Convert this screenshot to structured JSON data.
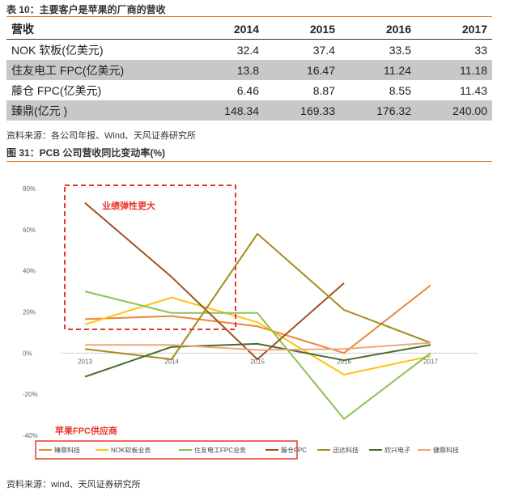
{
  "table": {
    "caption": "表 10：主要客户是苹果的厂商的营收",
    "header": [
      "营收",
      "2014",
      "2015",
      "2016",
      "2017"
    ],
    "rows": [
      {
        "label": "NOK 软板(亿美元)",
        "values": [
          "32.4",
          "37.4",
          "33.5",
          "33"
        ]
      },
      {
        "label": "住友电工 FPC(亿美元)",
        "values": [
          "13.8",
          "16.47",
          "11.24",
          "11.18"
        ]
      },
      {
        "label": "藤仓 FPC(亿美元)",
        "values": [
          "6.46",
          "8.87",
          "8.55",
          "11.43"
        ]
      },
      {
        "label": "臻鼎(亿元 )",
        "values": [
          "148.34",
          "169.33",
          "176.32",
          "240.00"
        ]
      }
    ],
    "source": "资料来源：各公司年报、Wind、天风证券研究所"
  },
  "chart_caption": "图 31：PCB 公司营收同比变动率(%)",
  "chart_data": {
    "type": "line",
    "categories": [
      "2013",
      "2014",
      "2015",
      "2016",
      "2017"
    ],
    "ylim": [
      -40,
      80
    ],
    "yticks": [
      "80%",
      "60%",
      "40%",
      "20%",
      "0%",
      "-20%",
      "-40%"
    ],
    "series": [
      {
        "name": "臻鼎科技",
        "color": "#e8873a",
        "values": [
          16.5,
          18,
          13,
          0,
          33
        ]
      },
      {
        "name": "NOK软板业务",
        "color": "#ffc20e",
        "values": [
          14,
          27,
          15,
          -10.5,
          -1.5
        ]
      },
      {
        "name": "住友电工FPC业务",
        "color": "#8cc152",
        "values": [
          30,
          19.5,
          19.5,
          -32,
          0
        ]
      },
      {
        "name": "藤仓FPC",
        "color": "#a0521e",
        "values": [
          73,
          37,
          -3,
          34,
          null
        ]
      },
      {
        "name": "迅达科技",
        "color": "#a88a1c",
        "values": [
          2,
          -3,
          58,
          21,
          5
        ]
      },
      {
        "name": "欣兴电子",
        "color": "#4a6b2a",
        "values": [
          -11.5,
          3,
          4.5,
          -3.5,
          4
        ]
      },
      {
        "name": "健鼎科技",
        "color": "#f2a57a",
        "values": [
          4,
          4,
          1.5,
          2,
          5
        ]
      }
    ],
    "annotations": {
      "box_label": "业绩弹性更大",
      "legend_label": "苹果FPC供应商"
    }
  },
  "chart_source": "资料来源：wind、天风证券研究所"
}
